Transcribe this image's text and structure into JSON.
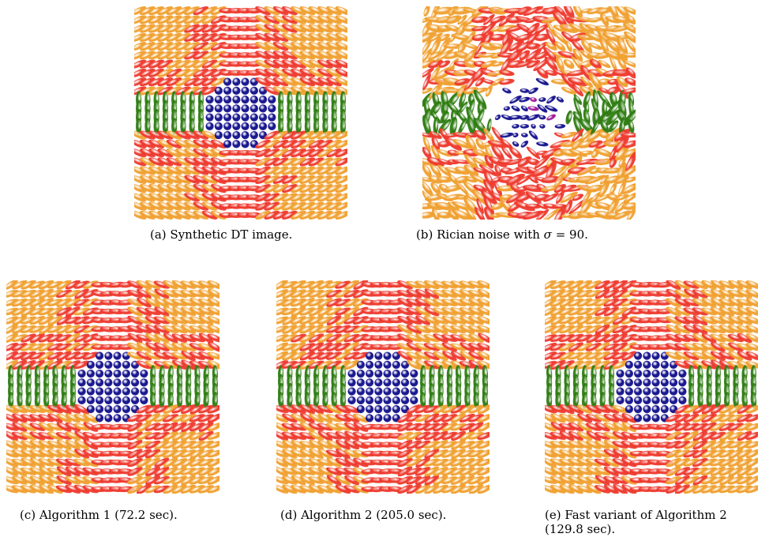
{
  "figure": {
    "panels": [
      {
        "id": "a",
        "caption": "(a) Synthetic DT image.",
        "style": "clean"
      },
      {
        "id": "b",
        "caption_prefix": "(b) Rician noise with ",
        "caption_symbol": "σ",
        "caption_suffix": " = 90.",
        "style": "noisy"
      },
      {
        "id": "c",
        "caption": "(c) Algorithm 1 (72.2 sec).",
        "style": "restored"
      },
      {
        "id": "d",
        "caption": "(d) Algorithm 2 (205.0 sec).",
        "style": "restored"
      },
      {
        "id": "e",
        "caption_line1": "(e) Fast variant of Algorithm 2",
        "caption_line2": "(129.8 sec).",
        "style": "restored"
      }
    ],
    "colors": {
      "orange": "#f0a030",
      "red": "#ee3a2e",
      "green": "#2f7d12",
      "blue": "#14128c",
      "magenta": "#a0189a"
    }
  }
}
